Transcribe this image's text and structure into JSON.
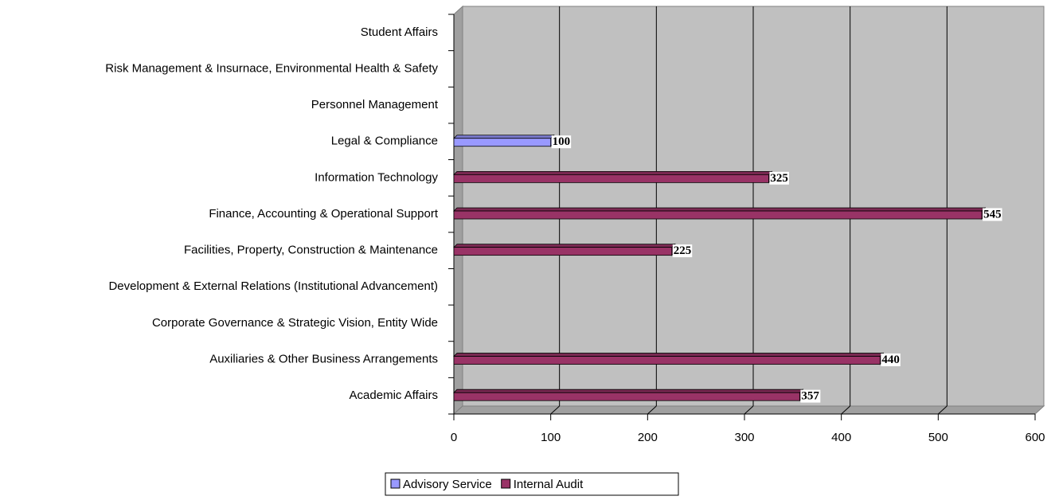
{
  "chart_data": {
    "type": "bar",
    "orientation": "horizontal",
    "three_d": true,
    "categories": [
      "Academic Affairs",
      "Auxiliaries & Other Business Arrangements",
      "Corporate Governance & Strategic Vision, Entity Wide",
      "Development & External Relations (Institutional Advancement)",
      "Facilities, Property, Construction & Maintenance",
      "Finance, Accounting & Operational Support",
      "Information Technology",
      "Legal & Compliance",
      "Personnel Management",
      "Risk Management & Insurnace, Environmental Health & Safety",
      "Student Affairs"
    ],
    "series": [
      {
        "name": "Advisory Service",
        "color": "#9999ff",
        "values": [
          null,
          null,
          null,
          null,
          null,
          null,
          null,
          100,
          null,
          null,
          null
        ]
      },
      {
        "name": "Internal Audit",
        "color": "#993366",
        "values": [
          357,
          440,
          null,
          null,
          225,
          545,
          325,
          null,
          null,
          null,
          null
        ]
      }
    ],
    "xlim": [
      0,
      600
    ],
    "xticks": [
      0,
      100,
      200,
      300,
      400,
      500,
      600
    ],
    "grid": true,
    "legend": "bottom"
  }
}
